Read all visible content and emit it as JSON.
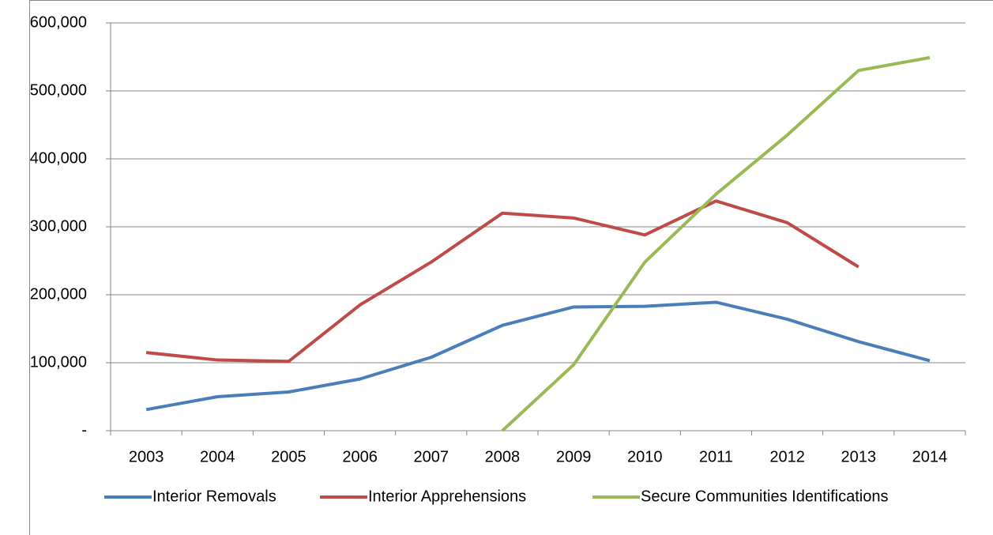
{
  "chart_data": {
    "type": "line",
    "categories": [
      "2003",
      "2004",
      "2005",
      "2006",
      "2007",
      "2008",
      "2009",
      "2010",
      "2011",
      "2012",
      "2013",
      "2014"
    ],
    "series": [
      {
        "name": "Interior Removals",
        "color": "#4a7ebb",
        "values": [
          31000,
          50000,
          57000,
          76000,
          108000,
          155000,
          182000,
          183000,
          189000,
          164000,
          131000,
          103000
        ]
      },
      {
        "name": "Interior Apprehensions",
        "color": "#be4b48",
        "values": [
          115000,
          104000,
          102000,
          185000,
          248000,
          320000,
          313000,
          288000,
          338000,
          306000,
          241000,
          null
        ]
      },
      {
        "name": "Secure Communities Identifications",
        "color": "#98b954",
        "values": [
          null,
          null,
          null,
          null,
          null,
          0,
          97000,
          248000,
          348000,
          435000,
          530000,
          549000
        ]
      }
    ],
    "ylim": [
      0,
      600000
    ],
    "yticks": [
      {
        "value": 0,
        "label": "-"
      },
      {
        "value": 100000,
        "label": "100,000"
      },
      {
        "value": 200000,
        "label": "200,000"
      },
      {
        "value": 300000,
        "label": "300,000"
      },
      {
        "value": 400000,
        "label": "400,000"
      },
      {
        "value": 500000,
        "label": "500,000"
      },
      {
        "value": 600000,
        "label": "600,000"
      }
    ],
    "grid": true,
    "legend": "bottom"
  }
}
